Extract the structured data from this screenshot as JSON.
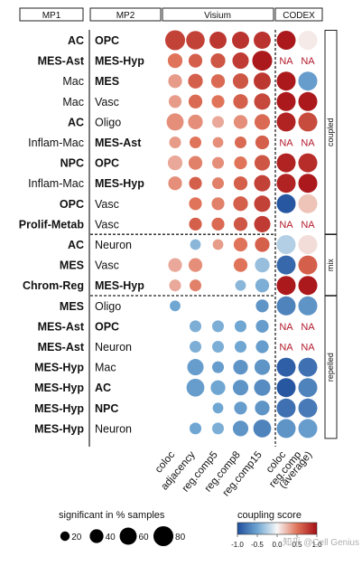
{
  "chart_data": {
    "type": "dotplot",
    "headers": {
      "mp1": "MP1",
      "mp2": "MP2",
      "visium": "Visium",
      "codex": "CODEX"
    },
    "columns": [
      "coloc",
      "adjacency",
      "reg.comp5",
      "reg.comp8",
      "reg.comp15",
      "coloc",
      "reg.comp (average)"
    ],
    "column_tick_labels": [
      "coloc",
      "adjacency",
      "reg.comp5",
      "reg.comp8",
      "reg.comp15",
      "coloc",
      "reg.comp",
      "(average)"
    ],
    "groups": [
      {
        "name": "coupled",
        "rows": [
          0,
          10
        ]
      },
      {
        "name": "mix",
        "rows": [
          10,
          13
        ]
      },
      {
        "name": "repelled",
        "rows": [
          13,
          20
        ]
      }
    ],
    "rows": [
      {
        "mp1": "AC",
        "mp1_bold": true,
        "mp2": "OPC",
        "mp2_bold": true
      },
      {
        "mp1": "MES-Ast",
        "mp1_bold": true,
        "mp2": "MES-Hyp",
        "mp2_bold": true
      },
      {
        "mp1": "Mac",
        "mp1_bold": false,
        "mp2": "MES",
        "mp2_bold": true
      },
      {
        "mp1": "Mac",
        "mp1_bold": false,
        "mp2": "Vasc",
        "mp2_bold": false
      },
      {
        "mp1": "AC",
        "mp1_bold": true,
        "mp2": "Oligo",
        "mp2_bold": false
      },
      {
        "mp1": "Inflam-Mac",
        "mp1_bold": false,
        "mp2": "MES-Ast",
        "mp2_bold": true
      },
      {
        "mp1": "NPC",
        "mp1_bold": true,
        "mp2": "OPC",
        "mp2_bold": true
      },
      {
        "mp1": "Inflam-Mac",
        "mp1_bold": false,
        "mp2": "MES-Hyp",
        "mp2_bold": true
      },
      {
        "mp1": "OPC",
        "mp1_bold": true,
        "mp2": "Vasc",
        "mp2_bold": false
      },
      {
        "mp1": "Prolif-Metab",
        "mp1_bold": true,
        "mp2": "Vasc",
        "mp2_bold": false
      },
      {
        "mp1": "AC",
        "mp1_bold": true,
        "mp2": "Neuron",
        "mp2_bold": false
      },
      {
        "mp1": "MES",
        "mp1_bold": true,
        "mp2": "Vasc",
        "mp2_bold": false
      },
      {
        "mp1": "Chrom-Reg",
        "mp1_bold": true,
        "mp2": "MES-Hyp",
        "mp2_bold": true
      },
      {
        "mp1": "MES",
        "mp1_bold": true,
        "mp2": "Oligo",
        "mp2_bold": false
      },
      {
        "mp1": "MES-Ast",
        "mp1_bold": true,
        "mp2": "OPC",
        "mp2_bold": true
      },
      {
        "mp1": "MES-Ast",
        "mp1_bold": true,
        "mp2": "Neuron",
        "mp2_bold": false
      },
      {
        "mp1": "MES-Hyp",
        "mp1_bold": true,
        "mp2": "Mac",
        "mp2_bold": false
      },
      {
        "mp1": "MES-Hyp",
        "mp1_bold": true,
        "mp2": "AC",
        "mp2_bold": true
      },
      {
        "mp1": "MES-Hyp",
        "mp1_bold": true,
        "mp2": "NPC",
        "mp2_bold": true
      },
      {
        "mp1": "MES-Hyp",
        "mp1_bold": true,
        "mp2": "Neuron",
        "mp2_bold": false
      }
    ],
    "visium_points": [
      {
        "row": 0,
        "col": 0,
        "score": 0.75,
        "pct": 80
      },
      {
        "row": 0,
        "col": 1,
        "score": 0.75,
        "pct": 70
      },
      {
        "row": 0,
        "col": 2,
        "score": 0.8,
        "pct": 60
      },
      {
        "row": 0,
        "col": 3,
        "score": 0.82,
        "pct": 60
      },
      {
        "row": 0,
        "col": 4,
        "score": 0.82,
        "pct": 60
      },
      {
        "row": 1,
        "col": 0,
        "score": 0.5,
        "pct": 45
      },
      {
        "row": 1,
        "col": 1,
        "score": 0.6,
        "pct": 40
      },
      {
        "row": 1,
        "col": 2,
        "score": 0.65,
        "pct": 45
      },
      {
        "row": 1,
        "col": 3,
        "score": 0.78,
        "pct": 55
      },
      {
        "row": 1,
        "col": 4,
        "score": 0.95,
        "pct": 80
      },
      {
        "row": 2,
        "col": 0,
        "score": 0.35,
        "pct": 40
      },
      {
        "row": 2,
        "col": 1,
        "score": 0.6,
        "pct": 45
      },
      {
        "row": 2,
        "col": 2,
        "score": 0.55,
        "pct": 40
      },
      {
        "row": 2,
        "col": 3,
        "score": 0.65,
        "pct": 50
      },
      {
        "row": 2,
        "col": 4,
        "score": 0.8,
        "pct": 60
      },
      {
        "row": 3,
        "col": 0,
        "score": 0.35,
        "pct": 35
      },
      {
        "row": 3,
        "col": 1,
        "score": 0.55,
        "pct": 40
      },
      {
        "row": 3,
        "col": 2,
        "score": 0.5,
        "pct": 35
      },
      {
        "row": 3,
        "col": 3,
        "score": 0.6,
        "pct": 45
      },
      {
        "row": 3,
        "col": 4,
        "score": 0.72,
        "pct": 55
      },
      {
        "row": 4,
        "col": 0,
        "score": 0.4,
        "pct": 60
      },
      {
        "row": 4,
        "col": 1,
        "score": 0.4,
        "pct": 45
      },
      {
        "row": 4,
        "col": 2,
        "score": 0.3,
        "pct": 30
      },
      {
        "row": 4,
        "col": 3,
        "score": 0.4,
        "pct": 40
      },
      {
        "row": 4,
        "col": 4,
        "score": 0.55,
        "pct": 50
      },
      {
        "row": 5,
        "col": 0,
        "score": 0.35,
        "pct": 30
      },
      {
        "row": 5,
        "col": 1,
        "score": 0.5,
        "pct": 30
      },
      {
        "row": 5,
        "col": 2,
        "score": 0.4,
        "pct": 25
      },
      {
        "row": 5,
        "col": 3,
        "score": 0.55,
        "pct": 30
      },
      {
        "row": 5,
        "col": 4,
        "score": 0.6,
        "pct": 40
      },
      {
        "row": 6,
        "col": 0,
        "score": 0.3,
        "pct": 45
      },
      {
        "row": 6,
        "col": 1,
        "score": 0.45,
        "pct": 40
      },
      {
        "row": 6,
        "col": 2,
        "score": 0.4,
        "pct": 30
      },
      {
        "row": 6,
        "col": 3,
        "score": 0.5,
        "pct": 35
      },
      {
        "row": 6,
        "col": 4,
        "score": 0.65,
        "pct": 50
      },
      {
        "row": 7,
        "col": 0,
        "score": 0.4,
        "pct": 40
      },
      {
        "row": 7,
        "col": 1,
        "score": 0.6,
        "pct": 35
      },
      {
        "row": 7,
        "col": 2,
        "score": 0.45,
        "pct": 30
      },
      {
        "row": 7,
        "col": 3,
        "score": 0.6,
        "pct": 40
      },
      {
        "row": 7,
        "col": 4,
        "score": 0.75,
        "pct": 55
      },
      {
        "row": 8,
        "col": 1,
        "score": 0.5,
        "pct": 35
      },
      {
        "row": 8,
        "col": 2,
        "score": 0.45,
        "pct": 35
      },
      {
        "row": 8,
        "col": 3,
        "score": 0.6,
        "pct": 45
      },
      {
        "row": 8,
        "col": 4,
        "score": 0.75,
        "pct": 55
      },
      {
        "row": 9,
        "col": 1,
        "score": 0.6,
        "pct": 35
      },
      {
        "row": 9,
        "col": 2,
        "score": 0.55,
        "pct": 35
      },
      {
        "row": 9,
        "col": 3,
        "score": 0.65,
        "pct": 40
      },
      {
        "row": 9,
        "col": 4,
        "score": 0.78,
        "pct": 55
      },
      {
        "row": 10,
        "col": 1,
        "score": -0.4,
        "pct": 25
      },
      {
        "row": 10,
        "col": 2,
        "score": 0.35,
        "pct": 25
      },
      {
        "row": 10,
        "col": 3,
        "score": 0.5,
        "pct": 40
      },
      {
        "row": 10,
        "col": 4,
        "score": 0.6,
        "pct": 45
      },
      {
        "row": 11,
        "col": 0,
        "score": 0.3,
        "pct": 40
      },
      {
        "row": 11,
        "col": 1,
        "score": 0.4,
        "pct": 40
      },
      {
        "row": 11,
        "col": 3,
        "score": 0.5,
        "pct": 40
      },
      {
        "row": 11,
        "col": 4,
        "score": -0.35,
        "pct": 45
      },
      {
        "row": 12,
        "col": 0,
        "score": 0.3,
        "pct": 30
      },
      {
        "row": 12,
        "col": 1,
        "score": 0.45,
        "pct": 30
      },
      {
        "row": 12,
        "col": 3,
        "score": -0.4,
        "pct": 25
      },
      {
        "row": 12,
        "col": 4,
        "score": -0.45,
        "pct": 40
      },
      {
        "row": 13,
        "col": 0,
        "score": -0.5,
        "pct": 25
      },
      {
        "row": 13,
        "col": 4,
        "score": -0.6,
        "pct": 35
      },
      {
        "row": 14,
        "col": 1,
        "score": -0.45,
        "pct": 30
      },
      {
        "row": 14,
        "col": 2,
        "score": -0.45,
        "pct": 30
      },
      {
        "row": 14,
        "col": 3,
        "score": -0.5,
        "pct": 30
      },
      {
        "row": 14,
        "col": 4,
        "score": -0.55,
        "pct": 35
      },
      {
        "row": 15,
        "col": 1,
        "score": -0.45,
        "pct": 30
      },
      {
        "row": 15,
        "col": 2,
        "score": -0.45,
        "pct": 30
      },
      {
        "row": 15,
        "col": 3,
        "score": -0.5,
        "pct": 30
      },
      {
        "row": 15,
        "col": 4,
        "score": -0.55,
        "pct": 35
      },
      {
        "row": 16,
        "col": 1,
        "score": -0.55,
        "pct": 55
      },
      {
        "row": 16,
        "col": 2,
        "score": -0.55,
        "pct": 30
      },
      {
        "row": 16,
        "col": 3,
        "score": -0.6,
        "pct": 45
      },
      {
        "row": 16,
        "col": 4,
        "score": -0.6,
        "pct": 50
      },
      {
        "row": 17,
        "col": 1,
        "score": -0.55,
        "pct": 65
      },
      {
        "row": 17,
        "col": 2,
        "score": -0.5,
        "pct": 45
      },
      {
        "row": 17,
        "col": 3,
        "score": -0.6,
        "pct": 50
      },
      {
        "row": 17,
        "col": 4,
        "score": -0.65,
        "pct": 55
      },
      {
        "row": 18,
        "col": 2,
        "score": -0.5,
        "pct": 25
      },
      {
        "row": 18,
        "col": 3,
        "score": -0.55,
        "pct": 35
      },
      {
        "row": 18,
        "col": 4,
        "score": -0.6,
        "pct": 45
      },
      {
        "row": 19,
        "col": 1,
        "score": -0.5,
        "pct": 30
      },
      {
        "row": 19,
        "col": 2,
        "score": -0.45,
        "pct": 30
      },
      {
        "row": 19,
        "col": 3,
        "score": -0.6,
        "pct": 50
      },
      {
        "row": 19,
        "col": 4,
        "score": -0.7,
        "pct": 65
      }
    ],
    "codex_values": [
      [
        0.95,
        0.05
      ],
      [
        null,
        null
      ],
      [
        0.95,
        -0.55
      ],
      [
        0.95,
        0.95
      ],
      [
        0.9,
        0.7
      ],
      [
        null,
        null
      ],
      [
        0.9,
        0.85
      ],
      [
        0.9,
        0.95
      ],
      [
        -0.95,
        0.2
      ],
      [
        null,
        null
      ],
      [
        -0.25,
        0.1
      ],
      [
        -0.85,
        0.6
      ],
      [
        0.95,
        0.95
      ],
      [
        -0.7,
        -0.6
      ],
      [
        null,
        null
      ],
      [
        null,
        null
      ],
      [
        -0.9,
        -0.8
      ],
      [
        -0.95,
        -0.7
      ],
      [
        -0.8,
        -0.75
      ],
      [
        -0.6,
        -0.55
      ]
    ],
    "na_label": "NA",
    "size_legend": {
      "title": "significant in % samples",
      "values": [
        20,
        40,
        60,
        80
      ]
    },
    "color_legend": {
      "title": "coupling score",
      "range": [
        -1.0,
        1.0
      ],
      "ticks": [
        "-1.0",
        "-0.5",
        "0.0",
        "0.5",
        "1.0"
      ],
      "low_color": "#1f4e9c",
      "mid_color": "#f7f7f7",
      "high_color": "#a50f15"
    },
    "watermark": "知乎 @Cell Genius"
  }
}
